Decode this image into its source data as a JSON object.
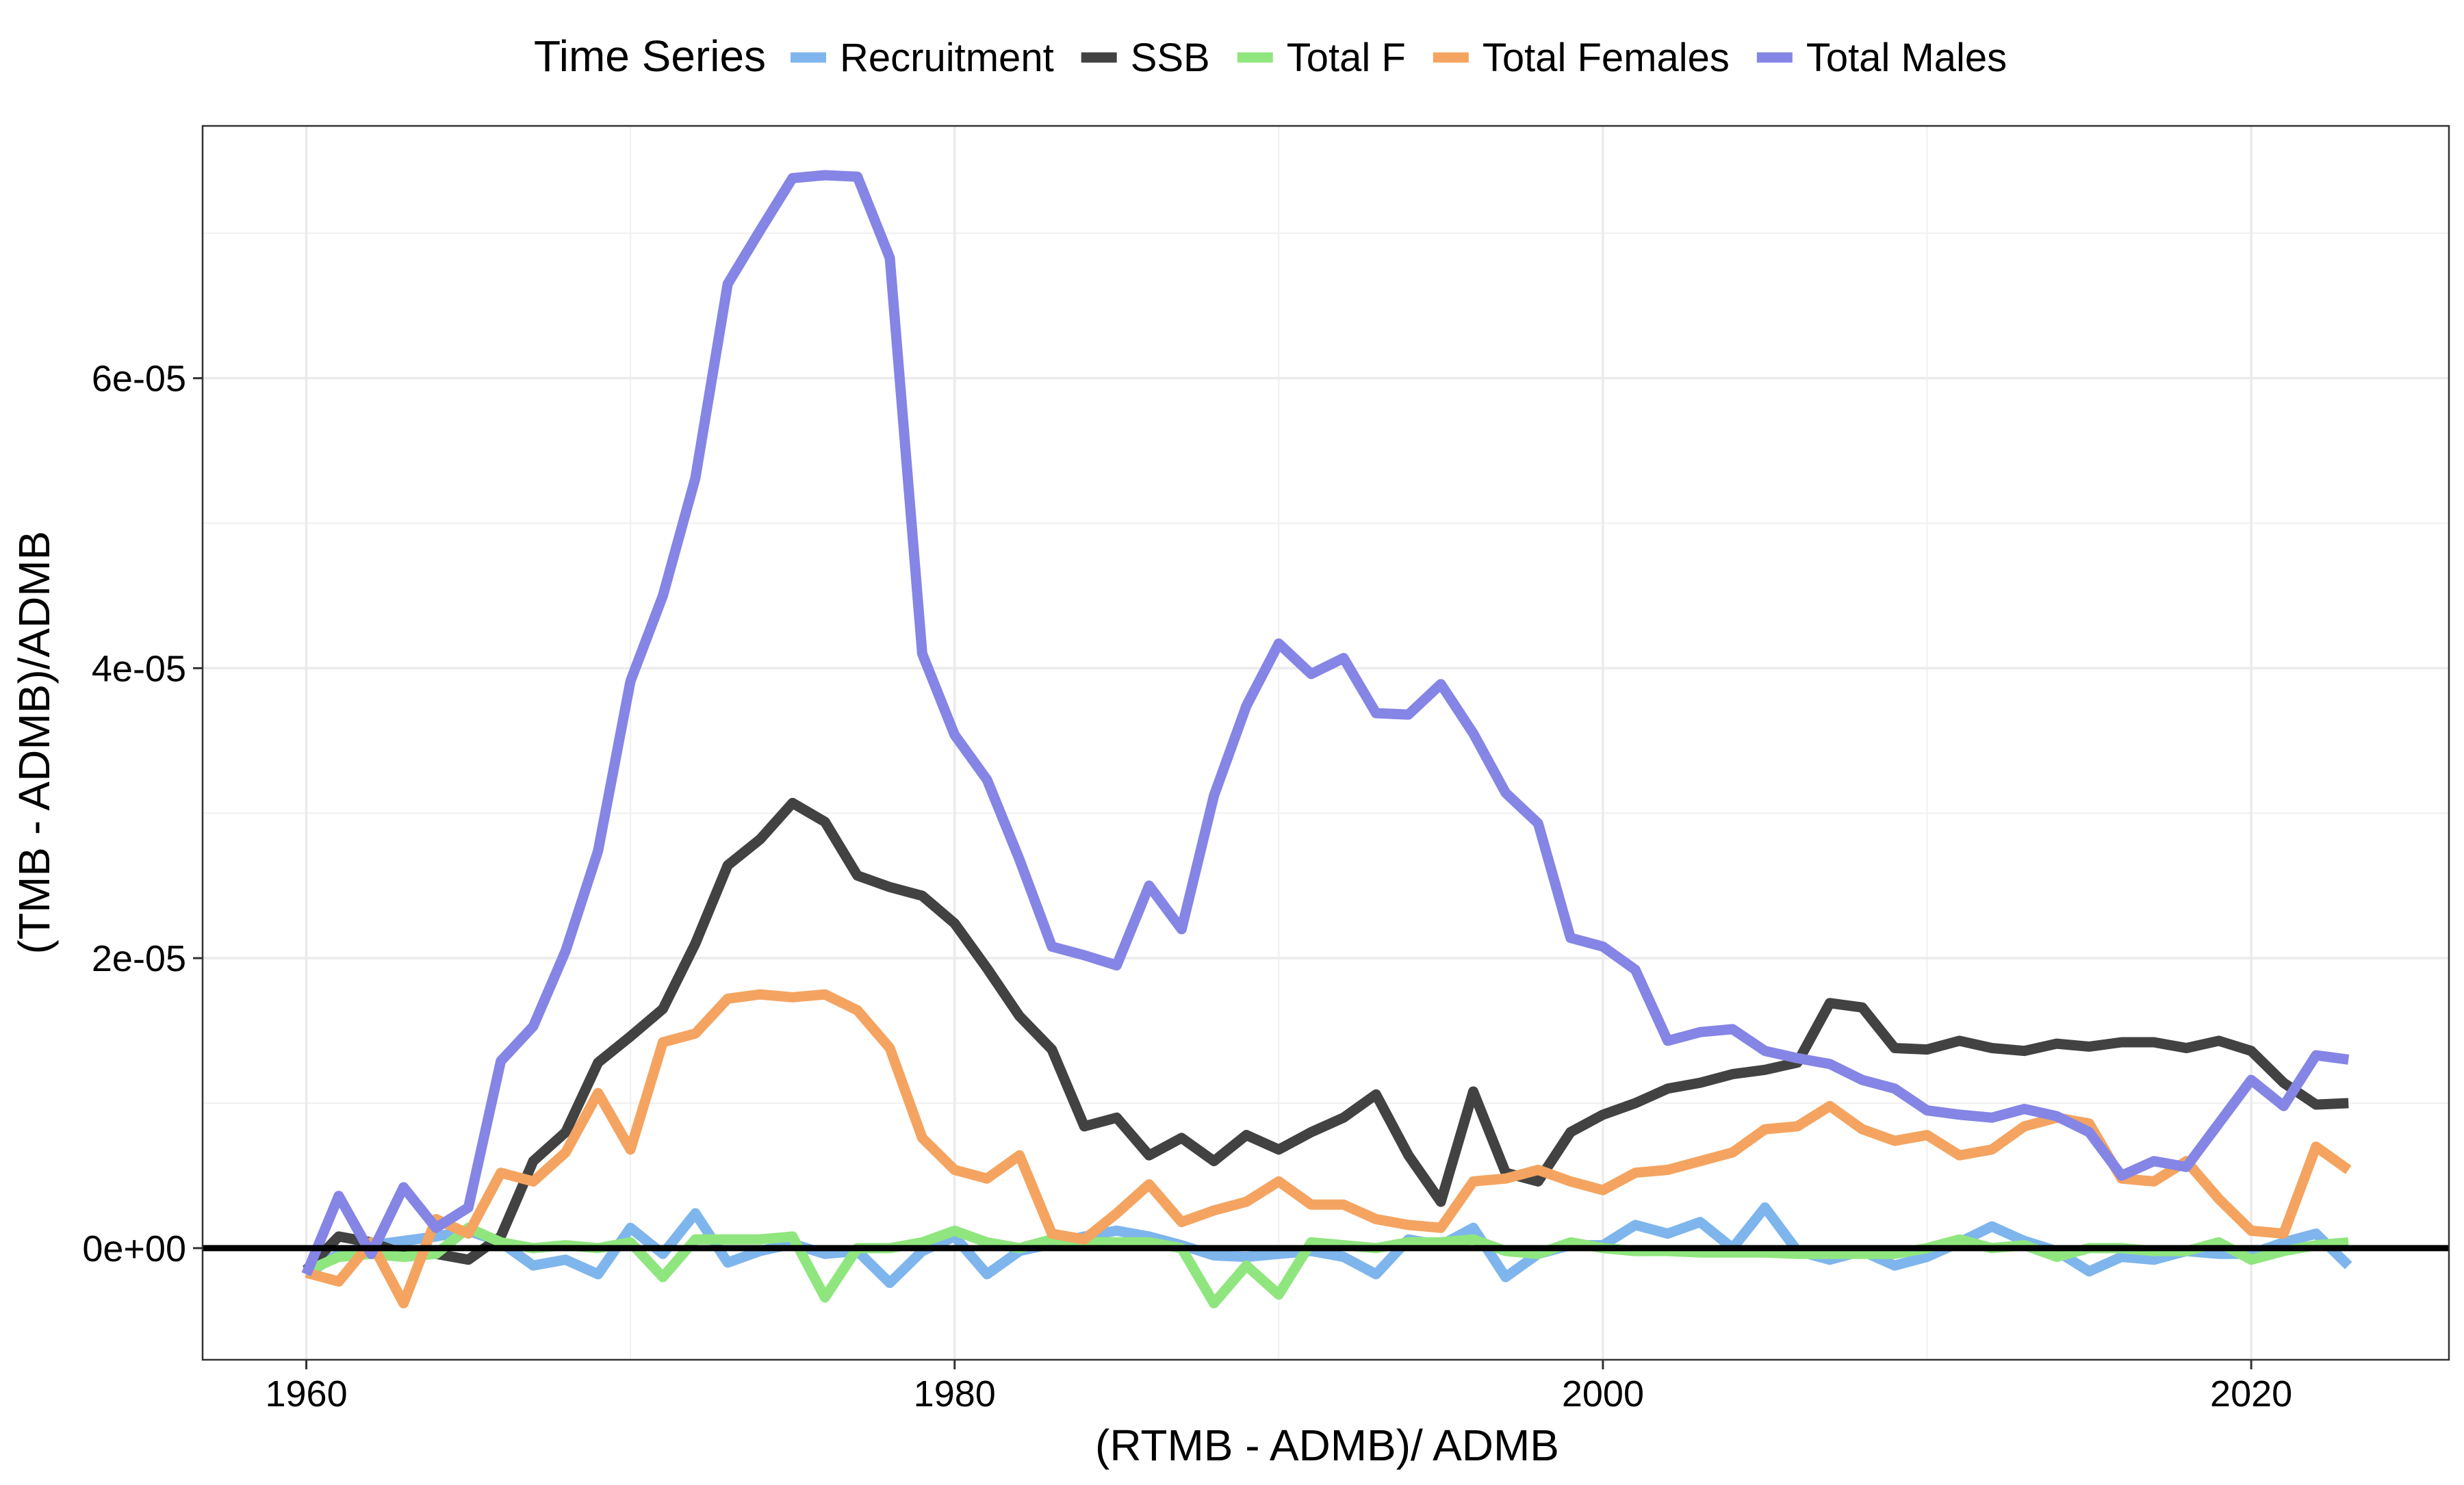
{
  "chart_data": {
    "type": "line",
    "xlabel": "(RTMB - ADMB)/ ADMB",
    "ylabel": "(TMB - ADMB)/ADMB",
    "xlim": [
      1956.8,
      2026.1
    ],
    "ylim": [
      -7.7e-06,
      7.74e-05
    ],
    "x_ticks": [
      1960,
      1980,
      2000,
      2020
    ],
    "x_tick_labels": [
      "1960",
      "1980",
      "2000",
      "2020"
    ],
    "y_ticks": [
      0,
      2e-05,
      4e-05,
      6e-05
    ],
    "y_tick_labels": [
      "0e+00",
      "2e-05",
      "4e-05",
      "6e-05"
    ],
    "grid": true,
    "reference_line_y": 0,
    "legend": {
      "title": "Time Series",
      "position": "top"
    },
    "x": [
      1960,
      1961,
      1962,
      1963,
      1964,
      1965,
      1966,
      1967,
      1968,
      1969,
      1970,
      1971,
      1972,
      1973,
      1974,
      1975,
      1976,
      1977,
      1978,
      1979,
      1980,
      1981,
      1982,
      1983,
      1984,
      1985,
      1986,
      1987,
      1988,
      1989,
      1990,
      1991,
      1992,
      1993,
      1994,
      1995,
      1996,
      1997,
      1998,
      1999,
      2000,
      2001,
      2002,
      2003,
      2004,
      2005,
      2006,
      2007,
      2008,
      2009,
      2010,
      2011,
      2012,
      2013,
      2014,
      2015,
      2016,
      2017,
      2018,
      2019,
      2020,
      2021,
      2022,
      2023
    ],
    "series": [
      {
        "name": "Recruitment",
        "color": "#7EB5EC",
        "values": [
          -1.8e-06,
          -4e-07,
          2e-07,
          5e-07,
          8e-07,
          1.2e-06,
          4e-07,
          -1.2e-06,
          -8e-07,
          -1.8e-06,
          1.4e-06,
          -4e-07,
          2.4e-06,
          -1e-06,
          -2e-07,
          3e-07,
          -4e-07,
          -2e-07,
          -2.4e-06,
          -2e-07,
          8e-07,
          -1.8e-06,
          -2e-07,
          3e-07,
          8e-07,
          1.2e-06,
          8e-07,
          2e-07,
          -5e-07,
          -6e-07,
          -4e-07,
          -2e-07,
          -6e-07,
          -1.8e-06,
          6e-07,
          2e-07,
          1.4e-06,
          -2e-06,
          -4e-07,
          2e-07,
          2e-07,
          1.6e-06,
          1e-06,
          1.8e-06,
          0.0,
          2.8e-06,
          -2e-07,
          -8e-07,
          -2e-07,
          -1.2e-06,
          -6e-07,
          4e-07,
          1.5e-06,
          5e-07,
          -2e-07,
          -1.6e-06,
          -6e-07,
          -8e-07,
          -2e-07,
          -4e-07,
          -4e-07,
          4e-07,
          1e-06,
          -1.2e-06
        ]
      },
      {
        "name": "SSB",
        "color": "#424242",
        "values": [
          -1.5e-06,
          8e-07,
          4e-07,
          -4e-07,
          -4e-07,
          -8e-07,
          8e-07,
          6e-06,
          8e-06,
          1.28e-05,
          1.46e-05,
          1.65e-05,
          2.1e-05,
          2.64e-05,
          2.82e-05,
          3.07e-05,
          2.94e-05,
          2.57e-05,
          2.49e-05,
          2.43e-05,
          2.24e-05,
          1.93e-05,
          1.6e-05,
          1.37e-05,
          8.4e-06,
          9e-06,
          6.4e-06,
          7.6e-06,
          6e-06,
          7.8e-06,
          6.8e-06,
          8e-06,
          9e-06,
          1.06e-05,
          6.4e-06,
          3.2e-06,
          1.08e-05,
          5.2e-06,
          4.6e-06,
          8e-06,
          9.2e-06,
          1e-05,
          1.1e-05,
          1.14e-05,
          1.2e-05,
          1.23e-05,
          1.28e-05,
          1.69e-05,
          1.66e-05,
          1.38e-05,
          1.37e-05,
          1.43e-05,
          1.38e-05,
          1.36e-05,
          1.41e-05,
          1.39e-05,
          1.42e-05,
          1.42e-05,
          1.38e-05,
          1.43e-05,
          1.36e-05,
          1.14e-05,
          9.9e-06,
          1e-05
        ]
      },
      {
        "name": "Total F",
        "color": "#90E67E",
        "values": [
          -1.6e-06,
          -6e-07,
          -4e-07,
          -6e-07,
          -4e-07,
          1.4e-06,
          4e-07,
          0.0,
          2e-07,
          0.0,
          4e-07,
          -2e-06,
          6e-07,
          6e-07,
          6e-07,
          8e-07,
          -3.4e-06,
          0.0,
          0.0,
          4e-07,
          1.2e-06,
          4e-07,
          0.0,
          6e-07,
          4e-07,
          4e-07,
          4e-07,
          0.0,
          -3.8e-06,
          -1.2e-06,
          -3.2e-06,
          4e-07,
          2e-07,
          0.0,
          4e-07,
          4e-07,
          6e-07,
          -2e-07,
          -4e-07,
          4e-07,
          0.0,
          -2e-07,
          -2e-07,
          -3e-07,
          -3e-07,
          -3e-07,
          -4e-07,
          -4e-07,
          -4e-07,
          -4e-07,
          0.0,
          6e-07,
          0.0,
          2e-07,
          -6e-07,
          0.0,
          0.0,
          -2e-07,
          -2e-07,
          4e-07,
          -8e-07,
          -2e-07,
          2e-07,
          4e-07
        ]
      },
      {
        "name": "Total Females",
        "color": "#F4A460",
        "values": [
          -1.7e-06,
          -2.3e-06,
          4e-07,
          -3.8e-06,
          2e-06,
          1e-06,
          5.2e-06,
          4.6e-06,
          6.6e-06,
          1.07e-05,
          6.8e-06,
          1.42e-05,
          1.48e-05,
          1.72e-05,
          1.75e-05,
          1.73e-05,
          1.75e-05,
          1.64e-05,
          1.38e-05,
          7.6e-06,
          5.4e-06,
          4.8e-06,
          6.4e-06,
          1e-06,
          6e-07,
          2.4e-06,
          4.4e-06,
          1.8e-06,
          2.6e-06,
          3.2e-06,
          4.6e-06,
          3e-06,
          3e-06,
          2e-06,
          1.6e-06,
          1.4e-06,
          4.6e-06,
          4.8e-06,
          5.4e-06,
          4.6e-06,
          4e-06,
          5.2e-06,
          5.4e-06,
          6e-06,
          6.6e-06,
          8.2e-06,
          8.4e-06,
          9.8e-06,
          8.2e-06,
          7.4e-06,
          7.8e-06,
          6.4e-06,
          6.8e-06,
          8.4e-06,
          9e-06,
          8.6e-06,
          4.8e-06,
          4.6e-06,
          6e-06,
          3.4e-06,
          1.2e-06,
          1e-06,
          7e-06,
          5.4e-06
        ]
      },
      {
        "name": "Total Males",
        "color": "#8585E6",
        "values": [
          -1.8e-06,
          3.6e-06,
          -4e-07,
          4.2e-06,
          1.4e-06,
          2.8e-06,
          1.29e-05,
          1.53e-05,
          2.05e-05,
          2.74e-05,
          3.91e-05,
          4.5e-05,
          5.31e-05,
          6.65e-05,
          7.02e-05,
          7.38e-05,
          7.4e-05,
          7.39e-05,
          6.83e-05,
          4.1e-05,
          3.54e-05,
          3.23e-05,
          2.68e-05,
          2.08e-05,
          2.02e-05,
          1.95e-05,
          2.5e-05,
          2.2e-05,
          3.12e-05,
          3.74e-05,
          4.17e-05,
          3.96e-05,
          4.07e-05,
          3.69e-05,
          3.68e-05,
          3.89e-05,
          3.55e-05,
          3.14e-05,
          2.93e-05,
          2.14e-05,
          2.08e-05,
          1.92e-05,
          1.43e-05,
          1.49e-05,
          1.51e-05,
          1.36e-05,
          1.31e-05,
          1.27e-05,
          1.16e-05,
          1.1e-05,
          9.5e-06,
          9.2e-06,
          9e-06,
          9.6e-06,
          9.1e-06,
          8e-06,
          5e-06,
          6e-06,
          5.6e-06,
          8.6e-06,
          1.16e-05,
          9.8e-06,
          1.33e-05,
          1.3e-05
        ]
      }
    ]
  }
}
